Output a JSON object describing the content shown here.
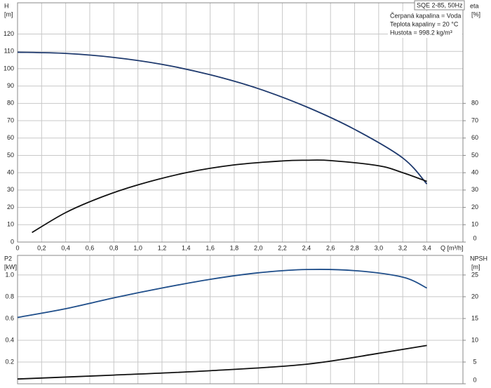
{
  "chart_data": [
    {
      "type": "line",
      "title": "SQE 2-85, 50Hz",
      "annotations": [
        "Čerpaná kapalina = Voda",
        "Teplota kapaliny = 20 °C",
        "Hustota = 998.2 kg/m³"
      ],
      "ylabel": "H",
      "yunit": "[m]",
      "y2label": "eta",
      "y2unit": "[%]",
      "xlabel": "Q [m³/h]",
      "xlim": [
        0,
        3.7
      ],
      "xticks": [
        0,
        {
          "value": 0.2,
          "label": "0,2"
        },
        {
          "value": 0.4,
          "label": "0,4"
        },
        {
          "value": 0.6,
          "label": "0,6"
        },
        {
          "value": 0.8,
          "label": "0,8"
        },
        {
          "value": 1,
          "label": "1,0"
        },
        {
          "value": 1.2,
          "label": "1,2"
        },
        {
          "value": 1.4,
          "label": "1,4"
        },
        {
          "value": 1.6,
          "label": "1,6"
        },
        {
          "value": 1.8,
          "label": "1,8"
        },
        {
          "value": 2,
          "label": "2,0"
        },
        {
          "value": 2.2,
          "label": "2,2"
        },
        {
          "value": 2.4,
          "label": "2,4"
        },
        {
          "value": 2.6,
          "label": "2,6"
        },
        {
          "value": 2.8,
          "label": "2,8"
        },
        {
          "value": 3,
          "label": "3,0"
        },
        {
          "value": 3.2,
          "label": "3,2"
        },
        {
          "value": 3.4,
          "label": "3,4"
        }
      ],
      "ylim": [
        0,
        138
      ],
      "yticks": [
        0,
        10,
        20,
        30,
        40,
        50,
        60,
        70,
        80,
        90,
        100,
        110,
        120
      ],
      "y2lim": [
        0,
        138
      ],
      "y2ticks": [
        0,
        10,
        20,
        30,
        40,
        50,
        60,
        70,
        80
      ],
      "grid": true,
      "series": [
        {
          "name": "H",
          "color": "#1f3a6e",
          "x": [
            0,
            0.4,
            0.8,
            1.2,
            1.6,
            2.0,
            2.4,
            2.8,
            3.2,
            3.4
          ],
          "values": [
            109.5,
            108.8,
            106.5,
            102.5,
            96.5,
            88.5,
            78,
            65,
            48.5,
            33.5
          ]
        },
        {
          "name": "eta",
          "color": "#111111",
          "axis": "y2",
          "x": [
            0.12,
            0.4,
            0.7,
            1.0,
            1.4,
            1.8,
            2.2,
            2.4,
            2.6,
            3.0,
            3.2,
            3.4
          ],
          "values": [
            5.5,
            17,
            26,
            33,
            40,
            44.5,
            46.8,
            47.2,
            47,
            44,
            40,
            35
          ]
        }
      ]
    },
    {
      "type": "line",
      "ylabel": "P2",
      "yunit": "[kW]",
      "y2label": "NPSH",
      "y2unit": "[m]",
      "xlim": [
        0,
        3.7
      ],
      "ylim": [
        0,
        1.18
      ],
      "yticks": [
        0.2,
        0.4,
        0.6,
        0.8,
        {
          "value": 1,
          "label": "1.0"
        }
      ],
      "y2lim": [
        0,
        29.5
      ],
      "y2ticks": [
        0,
        5,
        10,
        15,
        20,
        25
      ],
      "grid": true,
      "series": [
        {
          "name": "P2",
          "color": "#1f4e8a",
          "x": [
            0,
            0.4,
            0.8,
            1.2,
            1.6,
            2.0,
            2.4,
            2.8,
            3.2,
            3.4
          ],
          "values": [
            0.61,
            0.69,
            0.79,
            0.88,
            0.96,
            1.02,
            1.05,
            1.04,
            0.98,
            0.88
          ]
        },
        {
          "name": "NPSH",
          "color": "#111111",
          "axis": "y2",
          "x": [
            0,
            0.8,
            1.6,
            2.4,
            3.0,
            3.4
          ],
          "values": [
            1.1,
            2,
            3,
            4.5,
            7,
            8.8
          ]
        }
      ]
    }
  ]
}
